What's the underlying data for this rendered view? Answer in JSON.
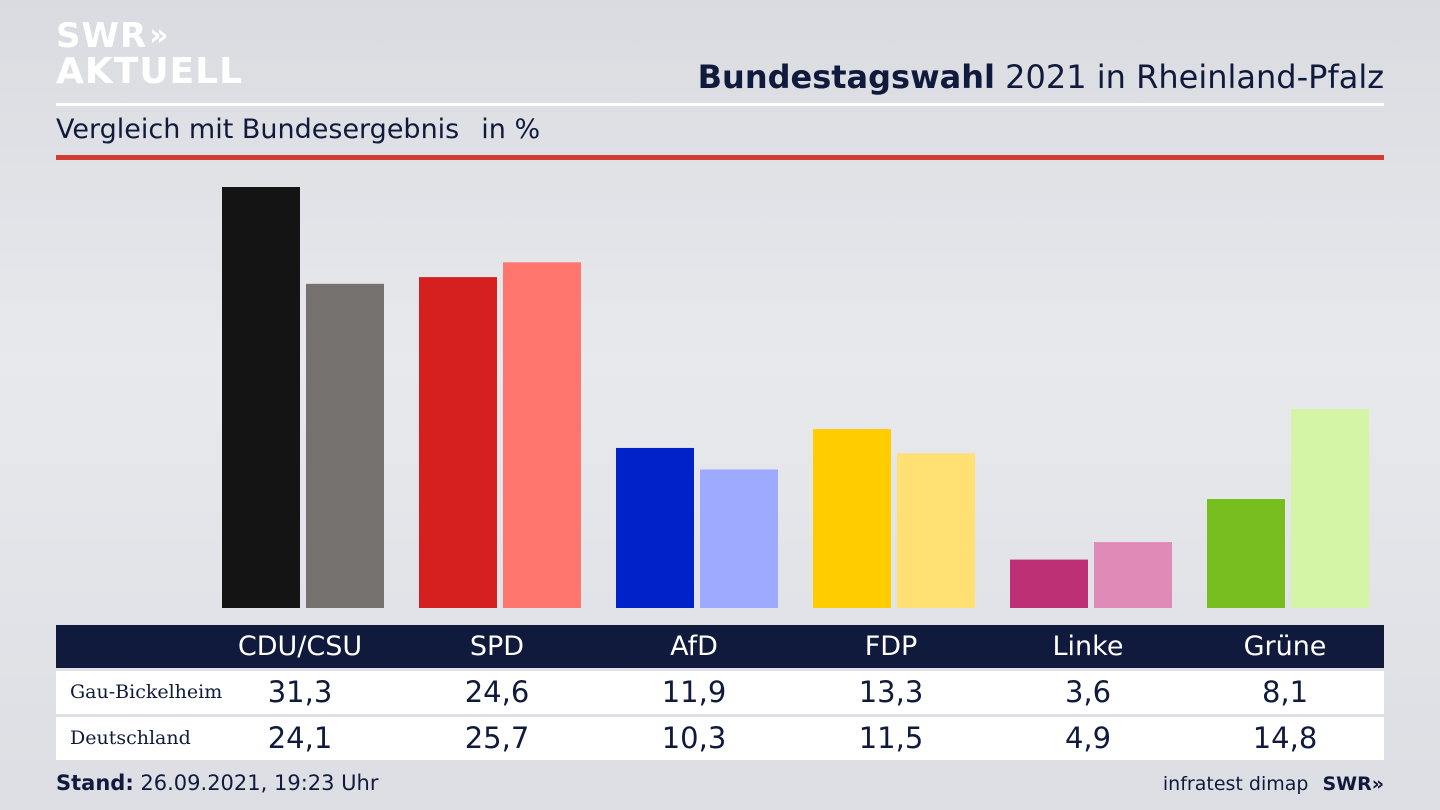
{
  "brand": {
    "line1": "SWR",
    "arrows": "»",
    "line2": "AKTUELL"
  },
  "header": {
    "title_bold": "Bundestagswahl",
    "title_rest": " 2021 in Rheinland-Pfalz"
  },
  "subtitle": {
    "text": "Vergleich mit Bundesergebnis",
    "unit": "in %"
  },
  "colors": {
    "accent_red": "#d33d33",
    "navy": "#0f1a3c",
    "parties_primary": [
      "#141414",
      "#d61f1f",
      "#0022c8",
      "#ffcc00",
      "#be3075",
      "#75be1e"
    ],
    "parties_secondary": [
      "#74716f",
      "#ff766e",
      "#9eaaff",
      "#ffe073",
      "#e08ab8",
      "#d5f5a6"
    ]
  },
  "chart_data": {
    "type": "bar",
    "categories": [
      "CDU/CSU",
      "SPD",
      "AfD",
      "FDP",
      "Linke",
      "Grüne"
    ],
    "series": [
      {
        "name": "Gau-Bickelheim",
        "values": [
          31.3,
          24.6,
          11.9,
          13.3,
          3.6,
          8.1
        ]
      },
      {
        "name": "Deutschland",
        "values": [
          24.1,
          25.7,
          10.3,
          11.5,
          4.9,
          14.8
        ]
      }
    ],
    "title": "Bundestagswahl 2021 in Rheinland-Pfalz",
    "subtitle": "Vergleich mit Bundesergebnis in %",
    "ylim": [
      0,
      31.3
    ],
    "grid": false,
    "legend": "table-below"
  },
  "table": {
    "headers": [
      "CDU/CSU",
      "SPD",
      "AfD",
      "FDP",
      "Linke",
      "Grüne"
    ],
    "rows": [
      {
        "label": "Gau-Bickelheim",
        "values": [
          "31,3",
          "24,6",
          "11,9",
          "13,3",
          "3,6",
          "8,1"
        ]
      },
      {
        "label": "Deutschland",
        "values": [
          "24,1",
          "25,7",
          "10,3",
          "11,5",
          "4,9",
          "14,8"
        ]
      }
    ]
  },
  "footer": {
    "stand_label": "Stand:",
    "stand_value": " 26.09.2021, 19:23 Uhr",
    "source": "infratest dimap",
    "brand_small": "SWR»"
  }
}
